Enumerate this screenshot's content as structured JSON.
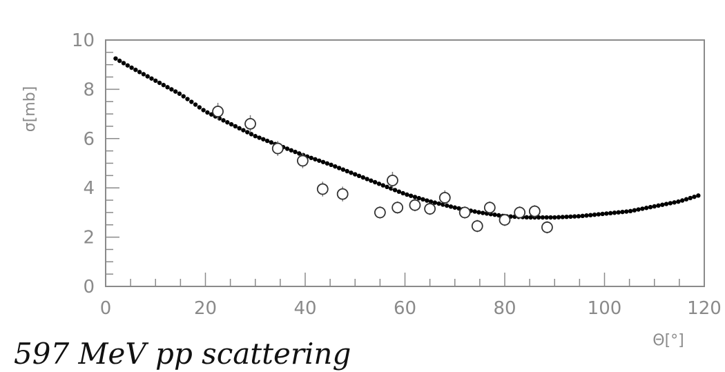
{
  "caption": "597 MeV pp scattering",
  "chart_data": {
    "type": "scatter",
    "xlabel": "Θ[°]",
    "ylabel": "σ[mb]",
    "xlim": [
      0,
      120
    ],
    "ylim": [
      0,
      10
    ],
    "x_ticks": [
      0,
      20,
      40,
      60,
      80,
      100,
      120
    ],
    "y_ticks": [
      0,
      2,
      4,
      6,
      8,
      10
    ],
    "grid": false,
    "series": [
      {
        "style": "filled-dots-curve",
        "color": "#000000",
        "x": [
          2,
          5,
          10,
          15,
          20,
          25,
          30,
          35,
          40,
          45,
          50,
          55,
          60,
          65,
          70,
          75,
          80,
          85,
          90,
          95,
          100,
          105,
          110,
          115,
          119
        ],
        "y": [
          9.25,
          8.9,
          8.35,
          7.8,
          7.1,
          6.6,
          6.1,
          5.7,
          5.3,
          4.95,
          4.55,
          4.15,
          3.75,
          3.45,
          3.2,
          3.0,
          2.85,
          2.8,
          2.8,
          2.85,
          2.95,
          3.05,
          3.25,
          3.45,
          3.7
        ]
      },
      {
        "style": "open-circles-with-errorbars",
        "color": "#333333",
        "x": [
          22.5,
          29,
          34.5,
          39.5,
          43.5,
          47.5,
          55,
          57.5,
          58.5,
          62,
          65,
          68,
          72,
          74.5,
          77,
          80,
          83,
          86,
          88.5
        ],
        "y": [
          7.1,
          6.6,
          5.6,
          5.1,
          3.95,
          3.75,
          3.0,
          4.3,
          3.2,
          3.3,
          3.15,
          3.6,
          3.0,
          2.45,
          3.2,
          2.7,
          3.0,
          3.05,
          2.4
        ],
        "err": [
          0.35,
          0.35,
          0.3,
          0.3,
          0.3,
          0.3,
          0.25,
          0.35,
          0.25,
          0.25,
          0.25,
          0.3,
          0.25,
          0.25,
          0.25,
          0.25,
          0.25,
          0.25,
          0.25
        ]
      }
    ]
  }
}
